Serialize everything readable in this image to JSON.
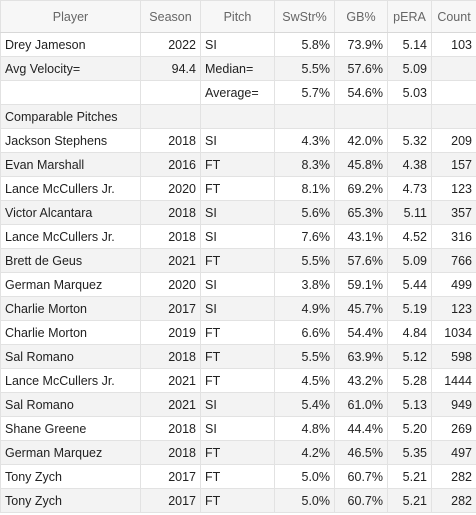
{
  "columns": [
    "Player",
    "Season",
    "Pitch",
    "SwStr%",
    "GB%",
    "pERA",
    "Count"
  ],
  "rows": [
    [
      "Drey Jameson",
      "2022",
      "SI",
      "5.8%",
      "73.9%",
      "5.14",
      "103"
    ],
    [
      "Avg Velocity=",
      "94.4",
      "Median=",
      "5.5%",
      "57.6%",
      "5.09",
      ""
    ],
    [
      "",
      "",
      "Average=",
      "5.7%",
      "54.6%",
      "5.03",
      ""
    ],
    [
      "Comparable Pitches",
      "",
      "",
      "",
      "",
      "",
      ""
    ],
    [
      "Jackson Stephens",
      "2018",
      "SI",
      "4.3%",
      "42.0%",
      "5.32",
      "209"
    ],
    [
      "Evan Marshall",
      "2016",
      "FT",
      "8.3%",
      "45.8%",
      "4.38",
      "157"
    ],
    [
      "Lance McCullers Jr.",
      "2020",
      "FT",
      "8.1%",
      "69.2%",
      "4.73",
      "123"
    ],
    [
      "Victor Alcantara",
      "2018",
      "SI",
      "5.6%",
      "65.3%",
      "5.11",
      "357"
    ],
    [
      "Lance McCullers Jr.",
      "2018",
      "SI",
      "7.6%",
      "43.1%",
      "4.52",
      "316"
    ],
    [
      "Brett de Geus",
      "2021",
      "FT",
      "5.5%",
      "57.6%",
      "5.09",
      "766"
    ],
    [
      "German Marquez",
      "2020",
      "SI",
      "3.8%",
      "59.1%",
      "5.44",
      "499"
    ],
    [
      "Charlie Morton",
      "2017",
      "SI",
      "4.9%",
      "45.7%",
      "5.19",
      "123"
    ],
    [
      "Charlie Morton",
      "2019",
      "FT",
      "6.6%",
      "54.4%",
      "4.84",
      "1034"
    ],
    [
      "Sal Romano",
      "2018",
      "FT",
      "5.5%",
      "63.9%",
      "5.12",
      "598"
    ],
    [
      "Lance McCullers Jr.",
      "2021",
      "FT",
      "4.5%",
      "43.2%",
      "5.28",
      "1444"
    ],
    [
      "Sal Romano",
      "2021",
      "SI",
      "5.4%",
      "61.0%",
      "5.13",
      "949"
    ],
    [
      "Shane Greene",
      "2018",
      "SI",
      "4.8%",
      "44.4%",
      "5.20",
      "269"
    ],
    [
      "German Marquez",
      "2018",
      "FT",
      "4.2%",
      "46.5%",
      "5.35",
      "497"
    ],
    [
      "Tony Zych",
      "2017",
      "FT",
      "5.0%",
      "60.7%",
      "5.21",
      "282"
    ],
    [
      "Tony Zych",
      "2017",
      "FT",
      "5.0%",
      "60.7%",
      "5.21",
      "282"
    ]
  ]
}
